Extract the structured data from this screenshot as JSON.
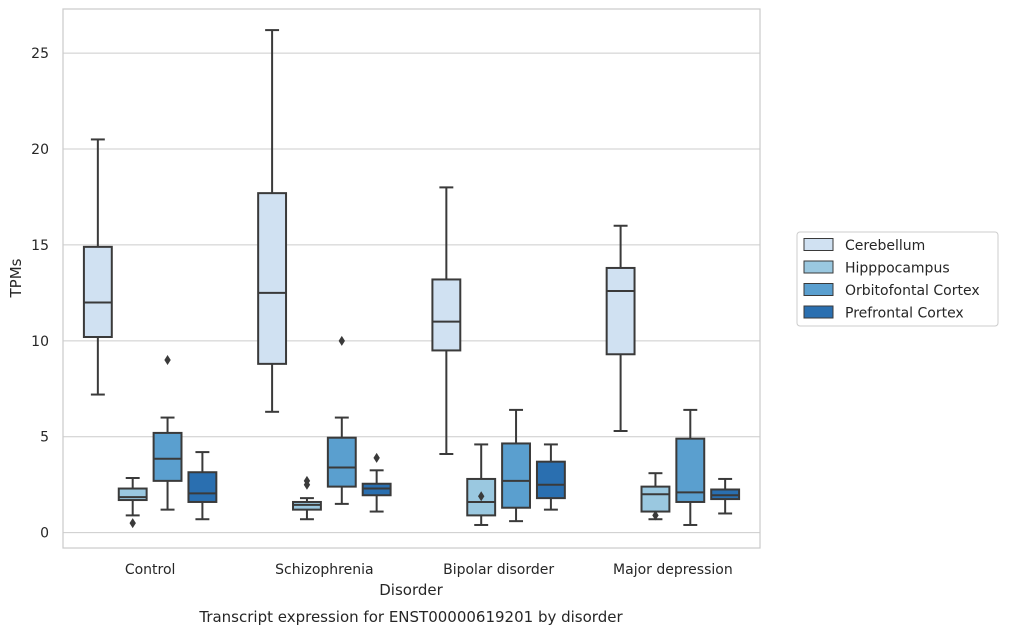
{
  "chart_data": {
    "type": "box",
    "title": "",
    "caption": "Transcript expression for ENST00000619201 by disorder",
    "xlabel": "Disorder",
    "ylabel": "TPMs",
    "ylim": [
      -0.8,
      27.3
    ],
    "yticks": [
      0,
      5,
      10,
      15,
      20,
      25
    ],
    "grid": "horizontal",
    "legend_position": "right",
    "categories": [
      "Control",
      "Schizophrenia",
      "Bipolar disorder",
      "Major depression"
    ],
    "series": [
      {
        "name": "Cerebellum",
        "color": "#d0e1f2",
        "boxes": [
          {
            "whisker_low": 7.2,
            "q1": 10.2,
            "median": 12.0,
            "q3": 14.9,
            "whisker_high": 20.5,
            "outliers": []
          },
          {
            "whisker_low": 6.3,
            "q1": 8.8,
            "median": 12.5,
            "q3": 17.7,
            "whisker_high": 26.2,
            "outliers": []
          },
          {
            "whisker_low": 4.1,
            "q1": 9.5,
            "median": 11.0,
            "q3": 13.2,
            "whisker_high": 18.0,
            "outliers": []
          },
          {
            "whisker_low": 5.3,
            "q1": 9.3,
            "median": 12.6,
            "q3": 13.8,
            "whisker_high": 16.0,
            "outliers": []
          }
        ]
      },
      {
        "name": "Hipppocampus",
        "color": "#9ac8e0",
        "boxes": [
          {
            "whisker_low": 0.9,
            "q1": 1.7,
            "median": 1.85,
            "q3": 2.3,
            "whisker_high": 2.85,
            "outliers": [
              0.5
            ]
          },
          {
            "whisker_low": 0.7,
            "q1": 1.2,
            "median": 1.45,
            "q3": 1.6,
            "whisker_high": 1.8,
            "outliers": [
              2.5,
              2.7
            ]
          },
          {
            "whisker_low": 0.4,
            "q1": 0.9,
            "median": 1.6,
            "q3": 2.8,
            "whisker_high": 4.6,
            "outliers": [
              1.9
            ]
          },
          {
            "whisker_low": 0.7,
            "q1": 1.1,
            "median": 2.0,
            "q3": 2.4,
            "whisker_high": 3.1,
            "outliers": [
              0.9
            ]
          }
        ]
      },
      {
        "name": "Orbitofontal Cortex",
        "color": "#5a9fcf",
        "boxes": [
          {
            "whisker_low": 1.2,
            "q1": 2.7,
            "median": 3.85,
            "q3": 5.2,
            "whisker_high": 6.0,
            "outliers": [
              9.0
            ]
          },
          {
            "whisker_low": 1.5,
            "q1": 2.4,
            "median": 3.4,
            "q3": 4.95,
            "whisker_high": 6.0,
            "outliers": [
              10.0
            ]
          },
          {
            "whisker_low": 0.6,
            "q1": 1.3,
            "median": 2.7,
            "q3": 4.65,
            "whisker_high": 6.4,
            "outliers": []
          },
          {
            "whisker_low": 0.4,
            "q1": 1.6,
            "median": 2.1,
            "q3": 4.9,
            "whisker_high": 6.4,
            "outliers": []
          }
        ]
      },
      {
        "name": "Prefrontal Cortex",
        "color": "#2a6fb0",
        "boxes": [
          {
            "whisker_low": 0.7,
            "q1": 1.6,
            "median": 2.05,
            "q3": 3.15,
            "whisker_high": 4.2,
            "outliers": []
          },
          {
            "whisker_low": 1.1,
            "q1": 1.95,
            "median": 2.3,
            "q3": 2.55,
            "whisker_high": 3.25,
            "outliers": [
              3.9
            ]
          },
          {
            "whisker_low": 1.2,
            "q1": 1.8,
            "median": 2.5,
            "q3": 3.7,
            "whisker_high": 4.6,
            "outliers": []
          },
          {
            "whisker_low": 1.0,
            "q1": 1.75,
            "median": 1.95,
            "q3": 2.25,
            "whisker_high": 2.8,
            "outliers": []
          }
        ]
      }
    ]
  }
}
